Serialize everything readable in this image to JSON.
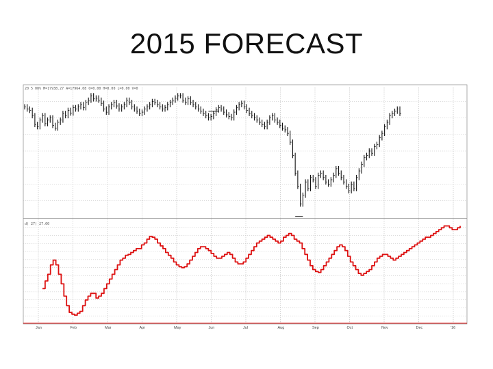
{
  "title": "2015 FORECAST",
  "chart_data": [
    {
      "type": "bar",
      "panel": "price",
      "header_text": "20  5 00%  M=17938.27  A=17964.08  O=0.00  H=0.00  L=0.00  V=0",
      "months": [
        "Jan",
        "Feb",
        "Mar",
        "Apr",
        "May",
        "Jun",
        "Jul",
        "Aug",
        "Sep",
        "Oct",
        "Nov",
        "Dec",
        "'16"
      ],
      "ylim": [
        15400,
        18400
      ],
      "grid": true,
      "bars_color": "#111111",
      "closes": [
        17900,
        17850,
        17820,
        17700,
        17500,
        17450,
        17600,
        17700,
        17520,
        17600,
        17650,
        17480,
        17420,
        17550,
        17600,
        17750,
        17700,
        17820,
        17760,
        17880,
        17850,
        17900,
        17950,
        17880,
        18000,
        18050,
        18150,
        18080,
        18100,
        18050,
        17980,
        17850,
        17780,
        17900,
        17950,
        18000,
        17920,
        17850,
        17900,
        17950,
        18050,
        18000,
        17900,
        17850,
        17800,
        17750,
        17780,
        17850,
        17900,
        17950,
        18020,
        18000,
        17950,
        17900,
        17850,
        17880,
        17950,
        18000,
        18050,
        18100,
        18150,
        18150,
        18050,
        18000,
        18080,
        18000,
        17950,
        17900,
        17850,
        17800,
        17750,
        17700,
        17650,
        17680,
        17750,
        17830,
        17880,
        17850,
        17780,
        17720,
        17680,
        17650,
        17780,
        17880,
        17950,
        17980,
        17900,
        17820,
        17750,
        17700,
        17650,
        17600,
        17550,
        17500,
        17450,
        17550,
        17650,
        17700,
        17600,
        17550,
        17480,
        17420,
        17380,
        17300,
        17100,
        16800,
        16400,
        16100,
        15700,
        15900,
        16200,
        16050,
        16300,
        16250,
        16100,
        16350,
        16400,
        16300,
        16200,
        16150,
        16250,
        16350,
        16500,
        16400,
        16300,
        16200,
        16100,
        16000,
        16150,
        16050,
        16300,
        16450,
        16600,
        16750,
        16800,
        16900,
        16850,
        17000,
        17050,
        17200,
        17300,
        17450,
        17550,
        17700,
        17750,
        17800,
        17850,
        17750
      ],
      "line_markers": [
        {
          "from": 72,
          "to": 76,
          "value": 17800
        },
        {
          "from": 106,
          "to": 109,
          "value": 15420
        }
      ]
    },
    {
      "type": "line",
      "panel": "indicator",
      "header_text": "d( 27)   27.60",
      "ylim": [
        0,
        100
      ],
      "grid": true,
      "line_color": "#dd1111",
      "baseline_color": "#dd1111",
      "values": [
        30,
        38,
        45,
        55,
        60,
        55,
        45,
        35,
        22,
        12,
        5,
        3,
        2,
        4,
        6,
        12,
        18,
        22,
        25,
        25,
        20,
        22,
        25,
        30,
        35,
        40,
        45,
        50,
        55,
        60,
        62,
        65,
        66,
        68,
        70,
        72,
        72,
        76,
        78,
        82,
        85,
        84,
        82,
        78,
        75,
        72,
        68,
        65,
        62,
        58,
        55,
        53,
        52,
        53,
        56,
        60,
        64,
        68,
        72,
        74,
        74,
        72,
        70,
        67,
        64,
        62,
        62,
        64,
        66,
        68,
        66,
        62,
        58,
        56,
        56,
        58,
        62,
        66,
        70,
        74,
        78,
        80,
        82,
        84,
        86,
        84,
        82,
        80,
        78,
        80,
        84,
        86,
        88,
        86,
        82,
        80,
        78,
        72,
        66,
        60,
        54,
        50,
        48,
        47,
        50,
        54,
        58,
        62,
        66,
        70,
        74,
        76,
        74,
        70,
        64,
        58,
        54,
        50,
        46,
        44,
        46,
        48,
        50,
        54,
        58,
        62,
        64,
        66,
        66,
        64,
        62,
        60,
        62,
        64,
        66,
        68,
        70,
        72,
        74,
        76,
        78,
        80,
        82,
        84,
        84,
        86,
        88,
        90,
        92,
        94,
        96,
        96,
        94,
        92,
        92,
        94,
        96
      ]
    }
  ]
}
